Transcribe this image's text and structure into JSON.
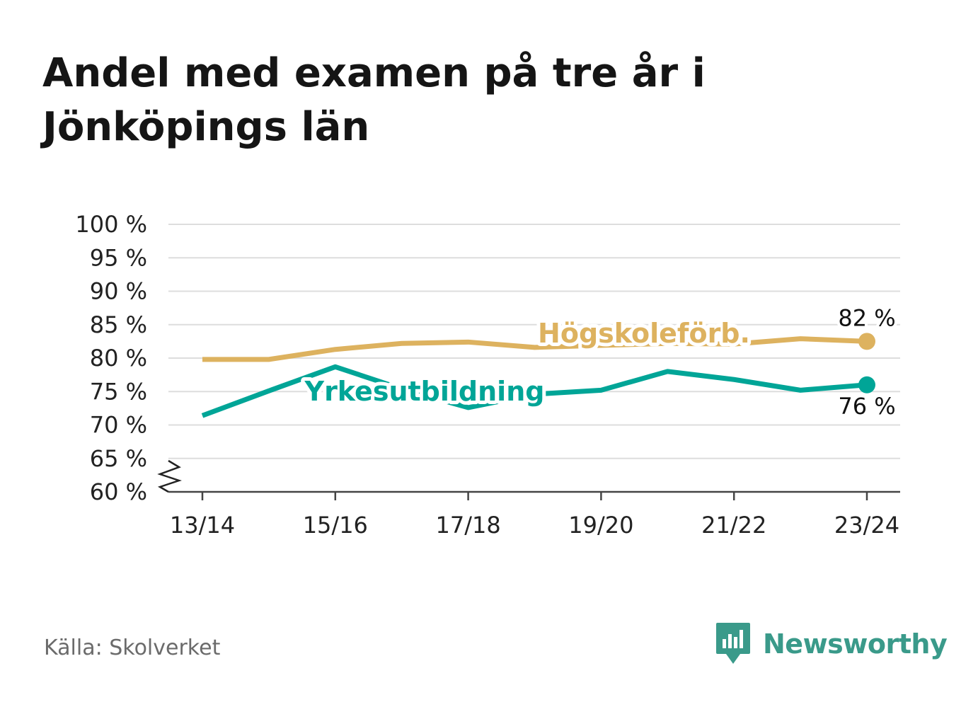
{
  "title": "Andel med examen på tre år i Jönköpings län",
  "source": "Källa: Skolverket",
  "brand": {
    "name": "Newsworthy",
    "icon": "newsworthy-logo-icon",
    "color": "#3a9a8a"
  },
  "chart_data": {
    "type": "line",
    "title": "Andel med examen på tre år i Jönköpings län",
    "xlabel": "",
    "ylabel": "",
    "categories": [
      "13/14",
      "14/15",
      "15/16",
      "16/17",
      "17/18",
      "18/19",
      "19/20",
      "20/21",
      "21/22",
      "22/23",
      "23/24"
    ],
    "x_tick_labels": [
      "13/14",
      "15/16",
      "17/18",
      "19/20",
      "21/22",
      "23/24"
    ],
    "y_ticks": [
      60,
      65,
      70,
      75,
      80,
      85,
      90,
      95,
      100
    ],
    "y_tick_labels": [
      "60 %",
      "65 %",
      "70 %",
      "75 %",
      "80 %",
      "85 %",
      "90 %",
      "95 %",
      "100 %"
    ],
    "ylim": [
      60,
      100
    ],
    "y_axis_break": true,
    "grid": true,
    "series": [
      {
        "name": "Högskoleförb.",
        "color": "#ddb25f",
        "values": [
          79.8,
          79.8,
          81.3,
          82.2,
          82.4,
          81.6,
          81.9,
          82.2,
          82.1,
          82.9,
          82.5
        ],
        "end_label": "82 %",
        "label_position": "above"
      },
      {
        "name": "Yrkesutbildning",
        "color": "#00a597",
        "values": [
          71.4,
          75.1,
          78.7,
          75.4,
          72.6,
          74.6,
          75.2,
          78.0,
          76.8,
          75.2,
          76.0
        ],
        "end_label": "76 %",
        "label_position": "below"
      }
    ]
  }
}
